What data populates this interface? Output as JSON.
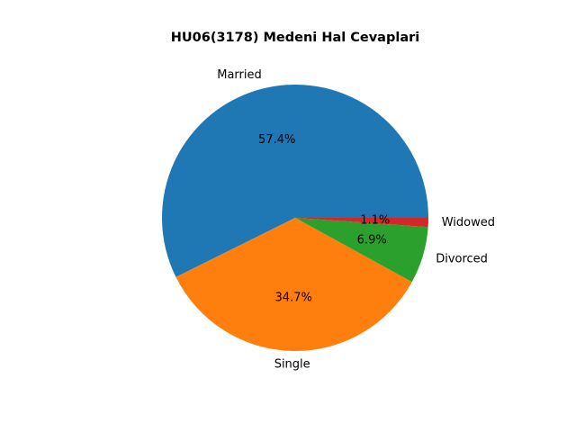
{
  "chart_data": {
    "type": "pie",
    "title": "HU06(3178) Medeni Hal Cevaplari",
    "start_angle_deg": 0,
    "direction": "counterclockwise",
    "slices": [
      {
        "label": "Married",
        "value": 57.4,
        "pct_label": "57.4%",
        "color": "#1f77b4"
      },
      {
        "label": "Single",
        "value": 34.7,
        "pct_label": "34.7%",
        "color": "#ff7f0e"
      },
      {
        "label": "Divorced",
        "value": 6.9,
        "pct_label": "6.9%",
        "color": "#2ca02c"
      },
      {
        "label": "Widowed",
        "value": 1.1,
        "pct_label": "1.1%",
        "color": "#d62728"
      }
    ],
    "legend": "none"
  }
}
